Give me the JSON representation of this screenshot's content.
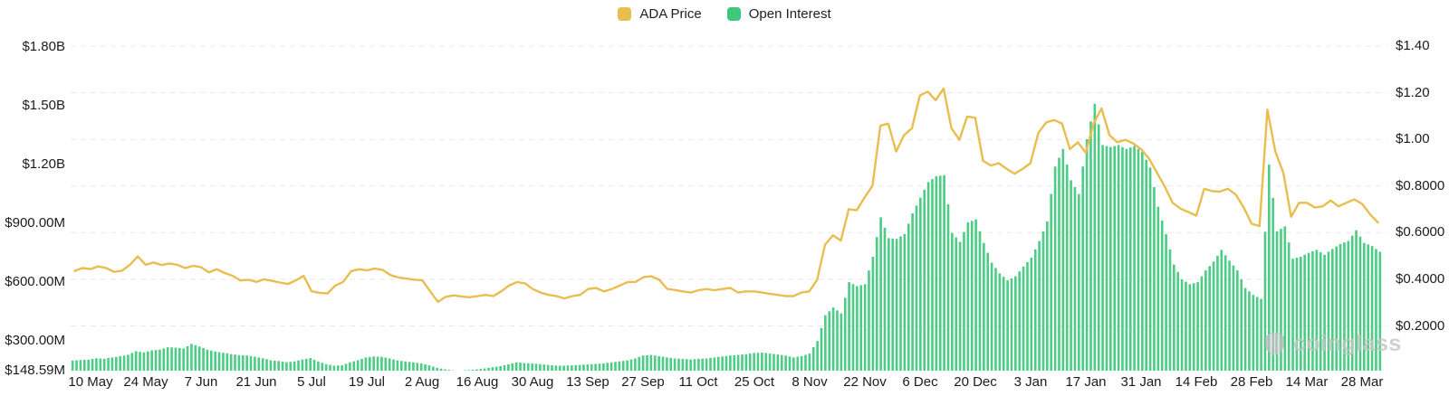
{
  "legend": {
    "items": [
      {
        "label": "ADA Price",
        "color": "#E9BD4F"
      },
      {
        "label": "Open Interest",
        "color": "#3DC87B"
      }
    ]
  },
  "watermark": {
    "text": "coinglass"
  },
  "chart_data": {
    "type": "combo",
    "title": "",
    "grid": "horizontal-dashed",
    "legend_position": "top-center",
    "x_start": "2024-05-06",
    "x_step_days": 2,
    "first_tick_point_index": 2,
    "points_per_tick": 7,
    "x_tick_labels": [
      "10 May",
      "24 May",
      "7 Jun",
      "21 Jun",
      "5 Jul",
      "19 Jul",
      "2 Aug",
      "16 Aug",
      "30 Aug",
      "13 Sep",
      "27 Sep",
      "11 Oct",
      "25 Oct",
      "8 Nov",
      "22 Nov",
      "6 Dec",
      "20 Dec",
      "3 Jan",
      "17 Jan",
      "31 Jan",
      "14 Feb",
      "28 Feb",
      "14 Mar",
      "28 Mar"
    ],
    "left_axis": {
      "series": "Open Interest",
      "ticks": [
        "$1.80B",
        "$1.50B",
        "$1.20B",
        "$900.00M",
        "$600.00M",
        "$300.00M",
        "$148.59M"
      ],
      "tick_values_musd": [
        1800,
        1500,
        1200,
        900,
        600,
        300,
        148.59
      ],
      "min_musd": 148.59,
      "max_musd": 1800
    },
    "right_axis": {
      "series": "ADA Price",
      "ticks": [
        "$1.40",
        "$1.20",
        "$1.00",
        "$0.8000",
        "$0.6000",
        "$0.4000",
        "$0.2000"
      ],
      "tick_values": [
        1.4,
        1.2,
        1.0,
        0.8,
        0.6,
        0.4,
        0.2
      ],
      "min": 0.2,
      "max": 1.4
    },
    "series": [
      {
        "name": "ADA Price",
        "type": "line",
        "axis": "right",
        "color": "#E9BD4F",
        "unit": "USD",
        "values": [
          0.436,
          0.448,
          0.444,
          0.455,
          0.448,
          0.432,
          0.437,
          0.462,
          0.498,
          0.462,
          0.472,
          0.461,
          0.468,
          0.462,
          0.448,
          0.458,
          0.452,
          0.43,
          0.443,
          0.427,
          0.415,
          0.395,
          0.398,
          0.389,
          0.4,
          0.393,
          0.386,
          0.38,
          0.395,
          0.415,
          0.349,
          0.342,
          0.339,
          0.373,
          0.389,
          0.435,
          0.443,
          0.438,
          0.446,
          0.44,
          0.418,
          0.408,
          0.403,
          0.398,
          0.396,
          0.349,
          0.303,
          0.325,
          0.331,
          0.326,
          0.323,
          0.328,
          0.333,
          0.328,
          0.348,
          0.373,
          0.388,
          0.383,
          0.358,
          0.343,
          0.333,
          0.328,
          0.318,
          0.328,
          0.333,
          0.358,
          0.363,
          0.348,
          0.358,
          0.373,
          0.388,
          0.389,
          0.409,
          0.413,
          0.398,
          0.359,
          0.354,
          0.348,
          0.343,
          0.353,
          0.358,
          0.353,
          0.358,
          0.363,
          0.343,
          0.348,
          0.348,
          0.343,
          0.338,
          0.333,
          0.328,
          0.328,
          0.343,
          0.348,
          0.398,
          0.548,
          0.589,
          0.566,
          0.701,
          0.696,
          0.751,
          0.801,
          1.058,
          1.068,
          0.948,
          1.018,
          1.048,
          1.188,
          1.205,
          1.168,
          1.218,
          1.048,
          0.998,
          1.098,
          1.093,
          0.908,
          0.888,
          0.898,
          0.873,
          0.853,
          0.873,
          0.898,
          1.028,
          1.073,
          1.083,
          1.068,
          0.958,
          0.988,
          0.943,
          1.068,
          1.133,
          1.018,
          0.988,
          0.998,
          0.983,
          0.958,
          0.918,
          0.858,
          0.798,
          0.728,
          0.703,
          0.688,
          0.673,
          0.788,
          0.778,
          0.776,
          0.788,
          0.763,
          0.708,
          0.638,
          0.628,
          1.128,
          0.948,
          0.858,
          0.668,
          0.728,
          0.728,
          0.708,
          0.713,
          0.738,
          0.713,
          0.728,
          0.743,
          0.723,
          0.678,
          0.643
        ]
      },
      {
        "name": "Open Interest",
        "type": "bar",
        "axis": "left",
        "color": "#3DC87B",
        "unit": "$M",
        "values": [
          200,
          203,
          205,
          212,
          210,
          216,
          222,
          230,
          248,
          242,
          252,
          256,
          268,
          266,
          262,
          285,
          272,
          256,
          246,
          240,
          233,
          228,
          226,
          220,
          212,
          202,
          198,
          192,
          196,
          206,
          213,
          196,
          182,
          174,
          176,
          191,
          202,
          216,
          221,
          219,
          211,
          201,
          196,
          191,
          186,
          176,
          163,
          155,
          150,
          149,
          152,
          155,
          160,
          166,
          172,
          181,
          191,
          188,
          185,
          182,
          178,
          175,
          174,
          176,
          178,
          181,
          183,
          186,
          191,
          196,
          201,
          211,
          226,
          229,
          223,
          216,
          211,
          209,
          206,
          209,
          211,
          216,
          221,
          226,
          229,
          233,
          239,
          241,
          236,
          231,
          226,
          216,
          223,
          236,
          300,
          432,
          471,
          441,
          600,
          580,
          590,
          730,
          931,
          825,
          821,
          846,
          951,
          1031,
          1111,
          1141,
          1146,
          851,
          806,
          906,
          921,
          800,
          700,
          645,
          610,
          630,
          680,
          725,
          810,
          910,
          1190,
          1280,
          1120,
          1050,
          1330,
          1511,
          1300,
          1290,
          1300,
          1280,
          1295,
          1265,
          1185,
          985,
          845,
          690,
          615,
          590,
          600,
          660,
          705,
          765,
          710,
          660,
          570,
          535,
          515,
          1200,
          860,
          885,
          720,
          730,
          750,
          765,
          740,
          770,
          795,
          810,
          865,
          800,
          785,
          755
        ]
      }
    ]
  }
}
